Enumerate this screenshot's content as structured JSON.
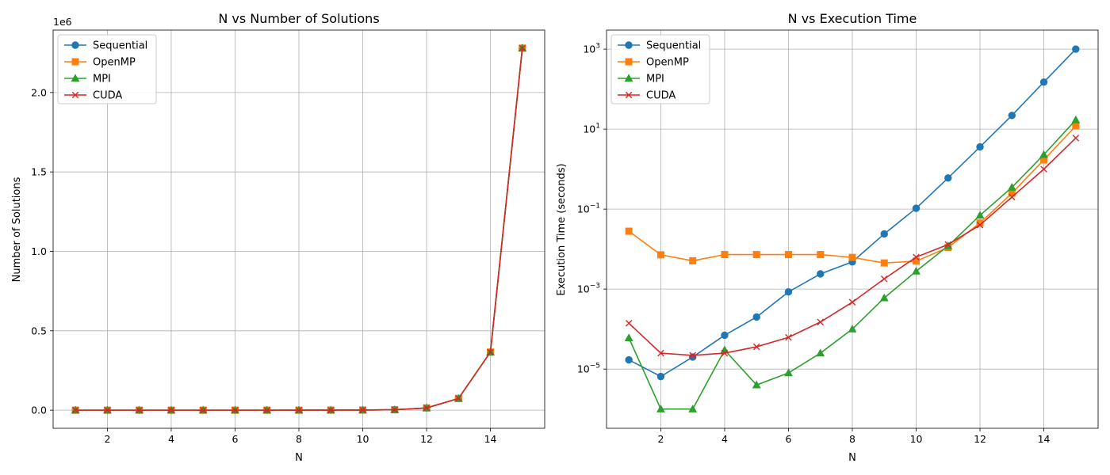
{
  "colors": {
    "Sequential": "#1f77b4",
    "OpenMP": "#ff7f0e",
    "MPI": "#2ca02c",
    "CUDA": "#d62728"
  },
  "chart_data": [
    {
      "type": "line",
      "title": "N vs Number of Solutions",
      "xlabel": "N",
      "ylabel": "Number of Solutions",
      "offset_text": "1e6",
      "xlim": [
        0.3,
        15.7
      ],
      "ylim": [
        -114000,
        2393000
      ],
      "xticks": [
        2,
        4,
        6,
        8,
        10,
        12,
        14
      ],
      "yticks": [
        0,
        500000,
        1000000,
        1500000,
        2000000
      ],
      "ytick_labels": [
        "0.0",
        "0.5",
        "1.0",
        "1.5",
        "2.0"
      ],
      "grid": true,
      "legend_position": "top-left",
      "x": [
        1,
        2,
        3,
        4,
        5,
        6,
        7,
        8,
        9,
        10,
        11,
        12,
        13,
        14,
        15
      ],
      "series": [
        {
          "name": "Sequential",
          "marker": "circle",
          "values": [
            1,
            0,
            0,
            2,
            10,
            4,
            40,
            92,
            352,
            724,
            2680,
            14200,
            73712,
            365596,
            2279184
          ]
        },
        {
          "name": "OpenMP",
          "marker": "square",
          "values": [
            1,
            0,
            0,
            2,
            10,
            4,
            40,
            92,
            352,
            724,
            2680,
            14200,
            73712,
            365596,
            2279184
          ]
        },
        {
          "name": "MPI",
          "marker": "triangle",
          "values": [
            1,
            0,
            0,
            2,
            10,
            4,
            40,
            92,
            352,
            724,
            2680,
            14200,
            73712,
            365596,
            2279184
          ]
        },
        {
          "name": "CUDA",
          "marker": "x",
          "values": [
            1,
            0,
            0,
            2,
            10,
            4,
            40,
            92,
            352,
            724,
            2680,
            14200,
            73712,
            365596,
            2279184
          ]
        }
      ]
    },
    {
      "type": "line",
      "title": "N vs Execution Time",
      "xlabel": "N",
      "ylabel": "Execution Time (seconds)",
      "yscale": "log",
      "xlim": [
        0.3,
        15.7
      ],
      "ylim": [
        3.3e-07,
        3000
      ],
      "xticks": [
        2,
        4,
        6,
        8,
        10,
        12,
        14
      ],
      "yticks": [
        1e-05,
        0.001,
        0.1,
        10,
        1000
      ],
      "ytick_labels": [
        {
          "base": "10",
          "exp": "−5"
        },
        {
          "base": "10",
          "exp": "−3"
        },
        {
          "base": "10",
          "exp": "−1"
        },
        {
          "base": "10",
          "exp": "1"
        },
        {
          "base": "10",
          "exp": "3"
        }
      ],
      "grid": true,
      "legend_position": "top-left",
      "x": [
        1,
        2,
        3,
        4,
        5,
        6,
        7,
        8,
        9,
        10,
        11,
        12,
        13,
        14,
        15
      ],
      "series": [
        {
          "name": "Sequential",
          "marker": "circle",
          "values": [
            1.7e-05,
            6.5e-06,
            2e-05,
            7e-05,
            0.0002,
            0.00085,
            0.0024,
            0.0048,
            0.024,
            0.105,
            0.6,
            3.6,
            22,
            150,
            1000
          ]
        },
        {
          "name": "OpenMP",
          "marker": "square",
          "values": [
            0.028,
            0.0072,
            0.0051,
            0.0073,
            0.0073,
            0.0073,
            0.0073,
            0.0062,
            0.0045,
            0.005,
            0.011,
            0.045,
            0.25,
            1.7,
            12
          ]
        },
        {
          "name": "MPI",
          "marker": "triangle",
          "values": [
            6e-05,
            1e-06,
            1e-06,
            3e-05,
            4e-06,
            8e-06,
            2.5e-05,
            0.0001,
            0.0006,
            0.0028,
            0.012,
            0.07,
            0.35,
            2.3,
            17
          ]
        },
        {
          "name": "CUDA",
          "marker": "x",
          "values": [
            0.00014,
            2.5e-05,
            2.2e-05,
            2.5e-05,
            3.6e-05,
            6.2e-05,
            0.00015,
            0.00047,
            0.0018,
            0.0063,
            0.013,
            0.04,
            0.2,
            1,
            6
          ]
        }
      ]
    }
  ]
}
